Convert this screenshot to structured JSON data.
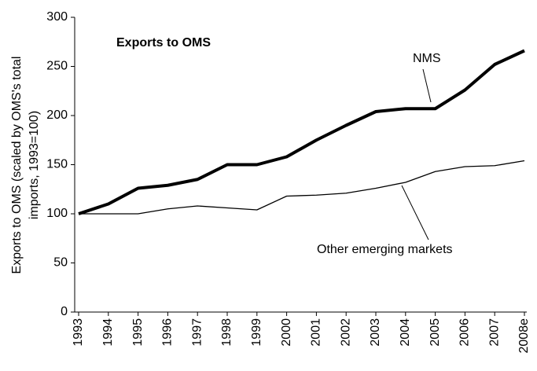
{
  "chart_data": {
    "type": "line",
    "title": "Exports to OMS",
    "y_label": [
      "Exports to OMS (scaled by OMS's total",
      "imports, 1993=100)"
    ],
    "categories": [
      "1993",
      "1994",
      "1995",
      "1996",
      "1997",
      "1998",
      "1999",
      "2000",
      "2001",
      "2002",
      "2003",
      "2004",
      "2005",
      "2006",
      "2007",
      "2008e"
    ],
    "series": [
      {
        "name": "NMS",
        "color": "#000000",
        "values": [
          100,
          110,
          126,
          129,
          135,
          150,
          150,
          158,
          175,
          190,
          204,
          207,
          207,
          226,
          252,
          266
        ]
      },
      {
        "name": "Other emerging markets",
        "color": "#000000",
        "values": [
          100,
          100,
          100,
          105,
          108,
          106,
          104,
          118,
          119,
          121,
          126,
          132,
          143,
          148,
          149,
          154
        ]
      }
    ],
    "ylim": [
      0,
      300
    ],
    "yticks": [
      0,
      50,
      100,
      150,
      200,
      250,
      300
    ],
    "grid": false
  }
}
